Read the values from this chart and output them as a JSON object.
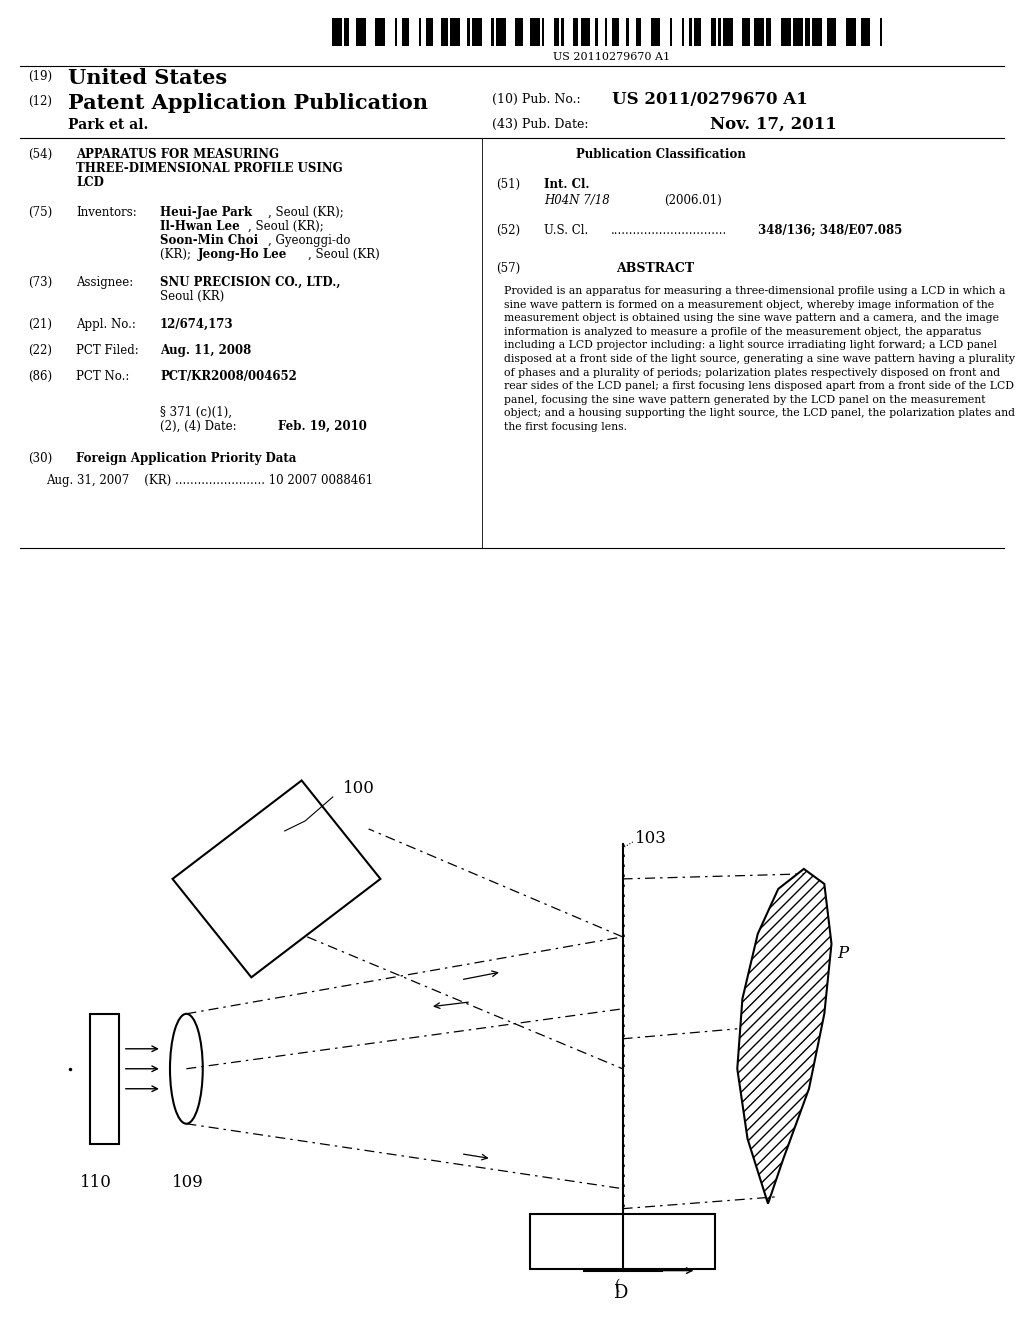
{
  "background_color": "#ffffff",
  "barcode_number": "US 20110279670 A1",
  "header_line1_num": "(19)",
  "header_line1_text": "United States",
  "header_line2_num": "(12)",
  "header_line2_text": "Patent Application Publication",
  "header_author": "Park et al.",
  "pub_no_label": "(10) Pub. No.:",
  "pub_no": "US 2011/0279670 A1",
  "pub_date_label": "(43) Pub. Date:",
  "pub_date": "Nov. 17, 2011",
  "sec54_num": "(54)",
  "sec54_line1": "APPARATUS FOR MEASURING",
  "sec54_line2": "THREE-DIMENSIONAL PROFILE USING",
  "sec54_line3": "LCD",
  "sec75_num": "(75)",
  "sec75_label": "Inventors:",
  "sec75_inv1_bold": "Heui-Jae Park",
  "sec75_inv1_rest": ", Seoul (KR);",
  "sec75_inv2_bold": "Il-Hwan Lee",
  "sec75_inv2_rest": ", Seoul (KR);",
  "sec75_inv3_bold": "Soon-Min Choi",
  "sec75_inv3_rest": ", Gyeonggi-do",
  "sec75_inv4": "(KR); ",
  "sec75_inv4_bold": "Jeong-Ho Lee",
  "sec75_inv4_rest": ", Seoul (KR)",
  "sec73_num": "(73)",
  "sec73_label": "Assignee:",
  "sec73_bold": "SNU PRECISION CO., LTD.,",
  "sec73_rest": "Seoul (KR)",
  "sec21_num": "(21)",
  "sec21_label": "Appl. No.:",
  "sec21_val": "12/674,173",
  "sec22_num": "(22)",
  "sec22_label": "PCT Filed:",
  "sec22_val": "Aug. 11, 2008",
  "sec86_num": "(86)",
  "sec86_label": "PCT No.:",
  "sec86_val": "PCT/KR2008/004652",
  "sec371_line1": "§ 371 (c)(1),",
  "sec371_line2": "(2), (4) Date:",
  "sec371_date": "Feb. 19, 2010",
  "sec30_num": "(30)",
  "sec30_label": "Foreign Application Priority Data",
  "sec30_data": "Aug. 31, 2007    (KR) ........................ 10 2007 0088461",
  "pub_class_header": "Publication Classification",
  "sec51_num": "(51)",
  "sec51_label": "Int. Cl.",
  "sec51_code": "H04N 7/18",
  "sec51_date": "(2006.01)",
  "sec52_num": "(52)",
  "sec52_label": "U.S. Cl.",
  "sec52_dots": "...............................",
  "sec52_val": "348/136; 348/E07.085",
  "sec57_num": "(57)",
  "sec57_label": "ABSTRACT",
  "abstract": "Provided is an apparatus for measuring a three-dimensional profile using a LCD in which a sine wave pattern is formed on a measurement object, whereby image information of the measurement object is obtained using the sine wave pattern and a camera, and the image information is analyzed to measure a profile of the measurement object, the apparatus including a LCD projector including: a light source irradiating light forward; a LCD panel disposed at a front side of the light source, generating a sine wave pattern having a plurality of phases and a plurality of periods; polarization plates respectively disposed on front and rear sides of the LCD panel; a first focusing lens disposed apart from a front side of the LCD panel, focusing the sine wave pattern generated by the LCD panel on the measurement object; and a housing supporting the light source, the LCD panel, the polarization plates and the first focusing lens.",
  "label_100": "100",
  "label_103": "103",
  "label_109": "109",
  "label_110": "110",
  "label_P": "P",
  "label_D": "D"
}
